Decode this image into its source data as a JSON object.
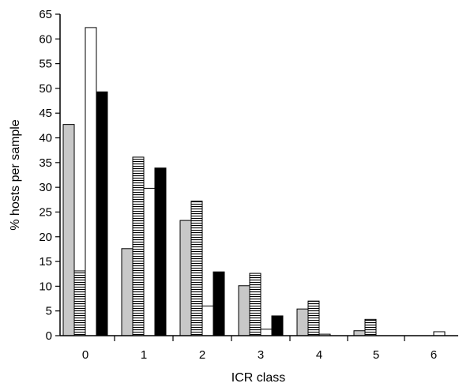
{
  "chart_data": {
    "type": "bar",
    "title": "",
    "xlabel": "ICR class",
    "ylabel": "% hosts per sample",
    "categories": [
      "0",
      "1",
      "2",
      "3",
      "4",
      "5",
      "6"
    ],
    "ylim": [
      0,
      65
    ],
    "yticks": [
      0,
      5,
      10,
      15,
      20,
      25,
      30,
      35,
      40,
      45,
      50,
      55,
      60,
      65
    ],
    "grid": false,
    "legend": "none",
    "series": [
      {
        "values": [
          42.7,
          17.6,
          23.3,
          10.1,
          5.4,
          1.0,
          0.0
        ],
        "fill": "#c8c8c8",
        "pattern": "solid"
      },
      {
        "values": [
          13.1,
          36.1,
          27.2,
          12.6,
          7.0,
          3.3,
          0.0
        ],
        "fill": "#ffffff",
        "pattern": "horizontal-stripes"
      },
      {
        "values": [
          62.3,
          29.8,
          6.0,
          1.3,
          0.3,
          0.0,
          0.8
        ],
        "fill": "#ffffff",
        "pattern": "solid"
      },
      {
        "values": [
          49.3,
          33.9,
          12.9,
          4.0,
          0.0,
          0.0,
          0.0
        ],
        "fill": "#000000",
        "pattern": "solid"
      }
    ]
  }
}
